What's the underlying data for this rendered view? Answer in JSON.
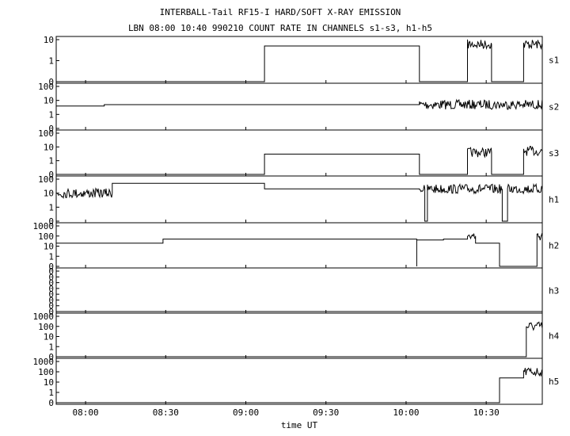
{
  "title_line1": "INTERBALL-Tail RF15-I HARD/SOFT X-RAY EMISSION",
  "title_line2": "LBN 08:00 10:40 990210  COUNT RATE IN CHANNELS s1-s3, h1-h5",
  "chart_data": {
    "type": "line",
    "xlabel": "time UT",
    "x_range": [
      "07:49",
      "10:51"
    ],
    "x_ticks": [
      "08:00",
      "08:30",
      "09:00",
      "09:30",
      "10:00",
      "10:30"
    ],
    "panels": [
      {
        "name": "s1",
        "y_ticks": [
          "10",
          "1",
          "0"
        ],
        "scale": "log",
        "segments": [
          {
            "t": [
              "07:49",
              "09:07"
            ],
            "level": 0
          },
          {
            "t": [
              "09:07",
              "10:05"
            ],
            "level": 5
          },
          {
            "t": [
              "10:05",
              "10:23"
            ],
            "level": 0
          },
          {
            "t": [
              "10:23",
              "10:32"
            ],
            "level": 6,
            "noisy": true
          },
          {
            "t": [
              "10:32",
              "10:44"
            ],
            "level": 0
          },
          {
            "t": [
              "10:44",
              "10:51"
            ],
            "level": 6,
            "noisy": true
          }
        ]
      },
      {
        "name": "s2",
        "y_ticks": [
          "100",
          "10",
          "1",
          "0"
        ],
        "scale": "log",
        "segments": [
          {
            "t": [
              "07:49",
              "08:07"
            ],
            "level": 4
          },
          {
            "t": [
              "08:07",
              "10:05"
            ],
            "level": 5
          },
          {
            "t": [
              "10:05",
              "10:51"
            ],
            "level": 5,
            "noisy": true
          }
        ]
      },
      {
        "name": "s3",
        "y_ticks": [
          "100",
          "10",
          "1",
          "0"
        ],
        "scale": "log",
        "segments": [
          {
            "t": [
              "07:49",
              "09:07"
            ],
            "level": 0
          },
          {
            "t": [
              "09:07",
              "10:05"
            ],
            "level": 3
          },
          {
            "t": [
              "10:05",
              "10:23"
            ],
            "level": 0
          },
          {
            "t": [
              "10:23",
              "10:32"
            ],
            "level": 4,
            "noisy": true
          },
          {
            "t": [
              "10:32",
              "10:44"
            ],
            "level": 0
          },
          {
            "t": [
              "10:44",
              "10:51"
            ],
            "level": 5,
            "noisy": true
          }
        ]
      },
      {
        "name": "h1",
        "y_ticks": [
          "100",
          "10",
          "1",
          "0"
        ],
        "scale": "log",
        "segments": [
          {
            "t": [
              "07:49",
              "08:10"
            ],
            "level": 10,
            "noisy": true
          },
          {
            "t": [
              "08:10",
              "09:07"
            ],
            "level": 50
          },
          {
            "t": [
              "09:07",
              "10:05"
            ],
            "level": 20
          },
          {
            "t": [
              "10:05",
              "10:07"
            ],
            "level": 20,
            "noisy": true
          },
          {
            "t": [
              "10:07",
              "10:08"
            ],
            "level": 0
          },
          {
            "t": [
              "10:08",
              "10:36"
            ],
            "level": 20,
            "noisy": true
          },
          {
            "t": [
              "10:36",
              "10:38"
            ],
            "level": 0
          },
          {
            "t": [
              "10:38",
              "10:51"
            ],
            "level": 20,
            "noisy": true
          }
        ]
      },
      {
        "name": "h2",
        "y_ticks": [
          "1000",
          "100",
          "10",
          "1",
          "0"
        ],
        "scale": "log",
        "segments": [
          {
            "t": [
              "07:49",
              "08:29"
            ],
            "level": 20
          },
          {
            "t": [
              "08:29",
              "10:04"
            ],
            "level": 50
          },
          {
            "t": [
              "10:04",
              "10:04"
            ],
            "level": 0
          },
          {
            "t": [
              "10:04",
              "10:14"
            ],
            "level": 40
          },
          {
            "t": [
              "10:14",
              "10:23"
            ],
            "level": 50
          },
          {
            "t": [
              "10:23",
              "10:26"
            ],
            "level": 100,
            "noisy": true
          },
          {
            "t": [
              "10:26",
              "10:35"
            ],
            "level": 20
          },
          {
            "t": [
              "10:35",
              "10:49"
            ],
            "level": 0
          },
          {
            "t": [
              "10:49",
              "10:51"
            ],
            "level": 100,
            "noisy": true
          }
        ]
      },
      {
        "name": "h3",
        "y_ticks": [
          "0",
          "0",
          "0",
          "0",
          "0",
          "0",
          "0",
          "0"
        ],
        "scale": "linear",
        "segments": [
          {
            "t": [
              "07:49",
              "10:51"
            ],
            "level": 0
          }
        ]
      },
      {
        "name": "h4",
        "y_ticks": [
          "1000",
          "100",
          "10",
          "1",
          "0"
        ],
        "scale": "log",
        "segments": [
          {
            "t": [
              "07:49",
              "10:45"
            ],
            "level": 0
          },
          {
            "t": [
              "10:45",
              "10:51"
            ],
            "level": 100,
            "noisy": true
          }
        ]
      },
      {
        "name": "h5",
        "y_ticks": [
          "1000",
          "100",
          "10",
          "1",
          "0"
        ],
        "scale": "log",
        "segments": [
          {
            "t": [
              "07:49",
              "10:35"
            ],
            "level": 0
          },
          {
            "t": [
              "10:35",
              "10:44"
            ],
            "level": 25
          },
          {
            "t": [
              "10:44",
              "10:51"
            ],
            "level": 100,
            "noisy": true
          }
        ]
      }
    ]
  }
}
